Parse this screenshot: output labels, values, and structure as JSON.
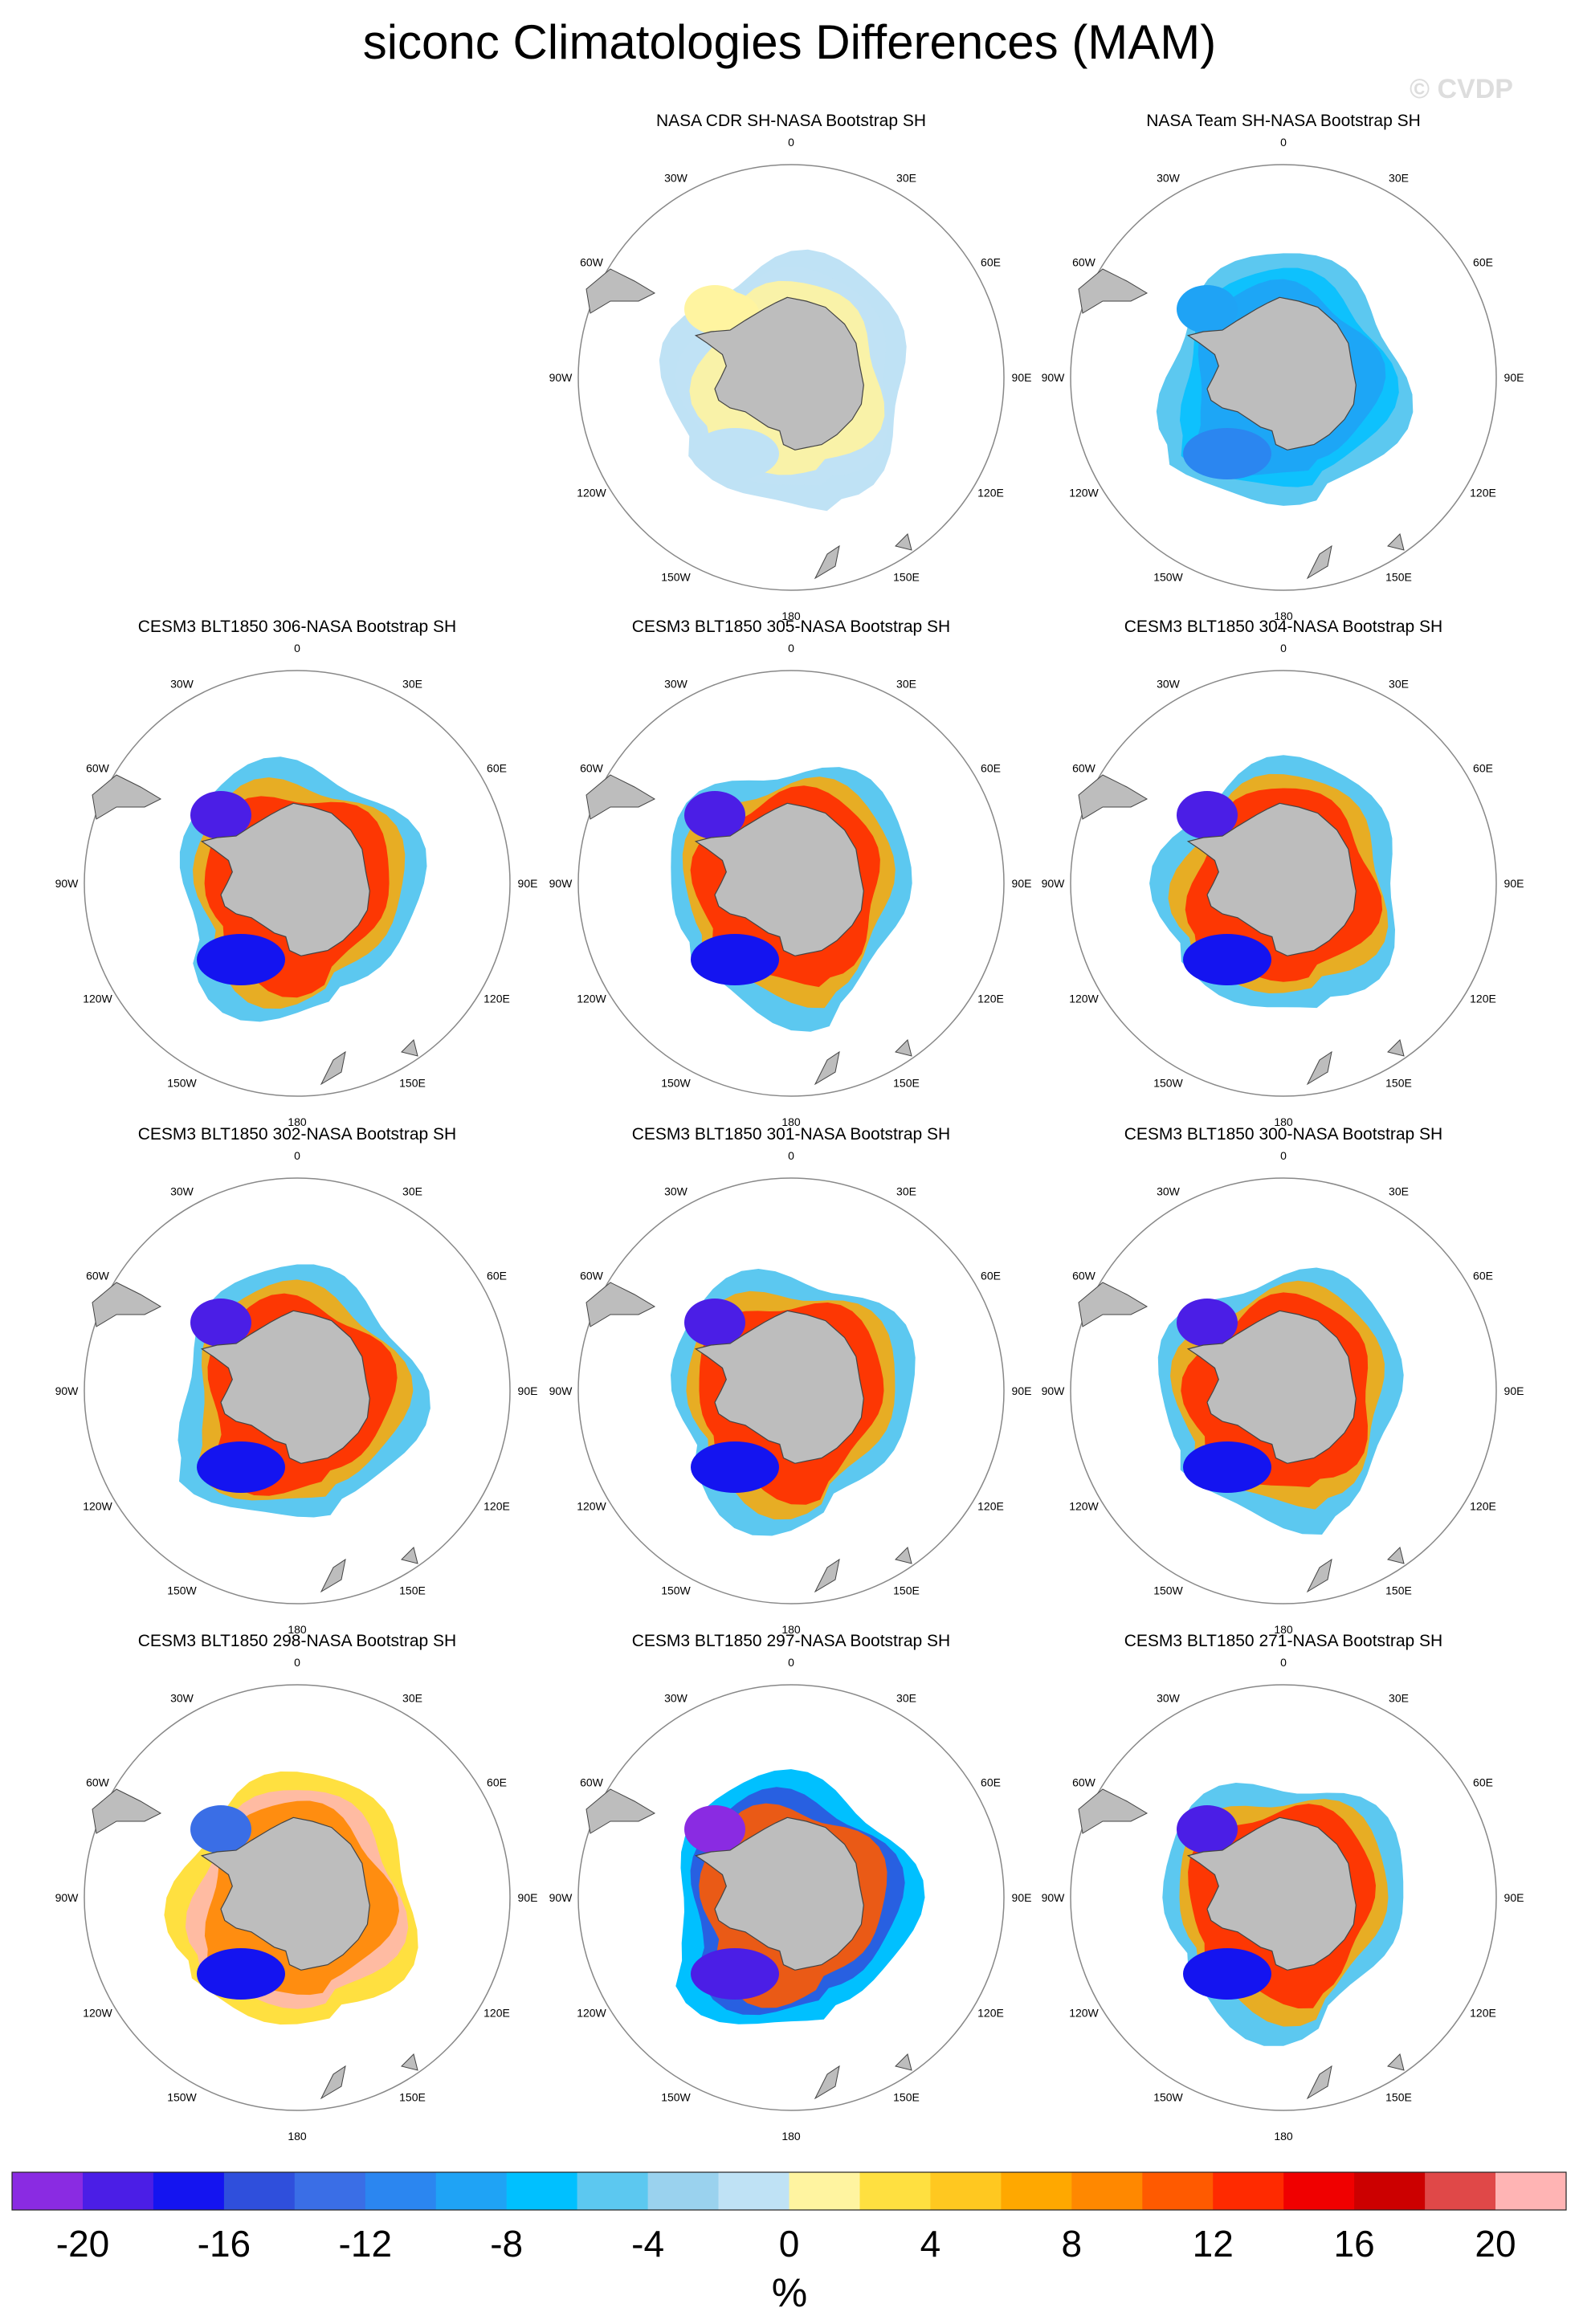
{
  "title": "siconc Climatologies Differences (MAM)",
  "copyright": "© CVDP",
  "longitude_labels": [
    "0",
    "30E",
    "60E",
    "90E",
    "120E",
    "150E",
    "180",
    "150W",
    "120W",
    "90W",
    "60W",
    "30W"
  ],
  "panels": [
    {
      "title": "NASA CDR SH-NASA Bootstrap SH",
      "pattern": "cdr"
    },
    {
      "title": "NASA Team SH-NASA Bootstrap SH",
      "pattern": "team"
    },
    {
      "title": "CESM3 BLT1850 306-NASA Bootstrap SH",
      "pattern": "model"
    },
    {
      "title": "CESM3 BLT1850 305-NASA Bootstrap SH",
      "pattern": "model"
    },
    {
      "title": "CESM3 BLT1850 304-NASA Bootstrap SH",
      "pattern": "model"
    },
    {
      "title": "CESM3 BLT1850 302-NASA Bootstrap SH",
      "pattern": "model"
    },
    {
      "title": "CESM3 BLT1850 301-NASA Bootstrap SH",
      "pattern": "model"
    },
    {
      "title": "CESM3 BLT1850 300-NASA Bootstrap SH",
      "pattern": "model"
    },
    {
      "title": "CESM3 BLT1850 298-NASA Bootstrap SH",
      "pattern": "warm"
    },
    {
      "title": "CESM3 BLT1850 297-NASA Bootstrap SH",
      "pattern": "cold"
    },
    {
      "title": "CESM3 BLT1850 271-NASA Bootstrap SH",
      "pattern": "model"
    }
  ],
  "colorbar": {
    "unit": "%",
    "tick_labels": [
      "-20",
      "-16",
      "-12",
      "-8",
      "-4",
      "0",
      "4",
      "8",
      "12",
      "16",
      "20"
    ],
    "colors": [
      "#8a2be2",
      "#4b1ee6",
      "#1414f0",
      "#2f4fdc",
      "#3a6ee6",
      "#2b86f0",
      "#1fa3f5",
      "#00c0ff",
      "#5cc8f0",
      "#9ad2ee",
      "#bfe2f5",
      "#fff4a0",
      "#ffe040",
      "#ffc820",
      "#ffa800",
      "#ff8800",
      "#ff5a00",
      "#ff2a00",
      "#f00000",
      "#cc0000",
      "#e04848",
      "#ffb4b4"
    ]
  },
  "land_color": "#bdbdbd"
}
